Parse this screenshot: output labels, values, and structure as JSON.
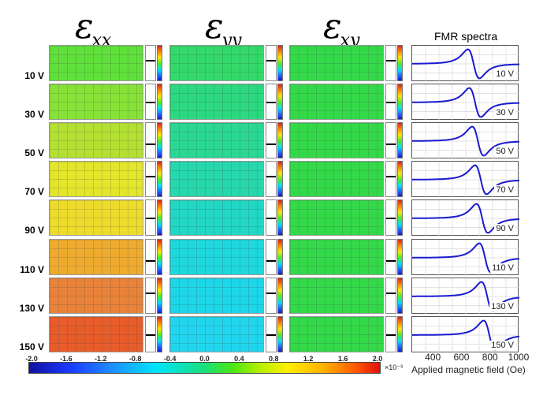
{
  "headers": {
    "exx": {
      "symbol": "ε",
      "sub": "xx"
    },
    "eyy": {
      "symbol": "ε",
      "sub": "yy"
    },
    "exy": {
      "symbol": "ε",
      "sub": "xy"
    },
    "fmr_title": "FMR spectra"
  },
  "rows": [
    {
      "voltage": "10 V",
      "label": "10 V",
      "exx_color": "#5fe03a",
      "eyy_color": "#33d96a",
      "exy_color": "#34d94a",
      "resonance_oe": 680
    },
    {
      "voltage": "30 V",
      "label": "30 V",
      "exx_color": "#86e236",
      "eyy_color": "#2cd880",
      "exy_color": "#34d94a",
      "resonance_oe": 690
    },
    {
      "voltage": "50 V",
      "label": "50 V",
      "exx_color": "#b4e032",
      "eyy_color": "#2ad893",
      "exy_color": "#34d94a",
      "resonance_oe": 710
    },
    {
      "voltage": "70 V",
      "label": "70 V",
      "exx_color": "#e3e62a",
      "eyy_color": "#27d8ad",
      "exy_color": "#34d94a",
      "resonance_oe": 730
    },
    {
      "voltage": "90 V",
      "label": "90 V",
      "exx_color": "#eedc2c",
      "eyy_color": "#22d7c4",
      "exy_color": "#34d94a",
      "resonance_oe": 740
    },
    {
      "voltage": "110 V",
      "label": "110 V",
      "exx_color": "#eeab2e",
      "eyy_color": "#1fd8de",
      "exy_color": "#34d94a",
      "resonance_oe": 760
    },
    {
      "voltage": "130 V",
      "label": "130 V",
      "exx_color": "#e9833a",
      "eyy_color": "#1dd6e8",
      "exy_color": "#34d94a",
      "resonance_oe": 775
    },
    {
      "voltage": "150 V",
      "label": "150 V",
      "exx_color": "#e85c2a",
      "eyy_color": "#22d5ee",
      "exy_color": "#34d94a",
      "resonance_oe": 790
    }
  ],
  "colorscale": {
    "ticks": [
      "-2.0",
      "-1.6",
      "-1.2",
      "-0.8",
      "-0.4",
      "0.0",
      "0.4",
      "0.8",
      "1.2",
      "1.6",
      "2.0"
    ],
    "unit": "×10⁻³"
  },
  "chart_data": {
    "type": "line",
    "title": "FMR spectra",
    "xlabel": "Applied magnetic field (Oe)",
    "xlim": [
      250,
      1000
    ],
    "xticks": [
      "400",
      "600",
      "800",
      "1000"
    ],
    "grid": true,
    "series": [
      {
        "name": "10 V",
        "resonance_oe": 680
      },
      {
        "name": "30 V",
        "resonance_oe": 690
      },
      {
        "name": "50 V",
        "resonance_oe": 710
      },
      {
        "name": "70 V",
        "resonance_oe": 730
      },
      {
        "name": "90 V",
        "resonance_oe": 740
      },
      {
        "name": "110 V",
        "resonance_oe": 760
      },
      {
        "name": "130 V",
        "resonance_oe": 775
      },
      {
        "name": "150 V",
        "resonance_oe": 790
      }
    ]
  }
}
